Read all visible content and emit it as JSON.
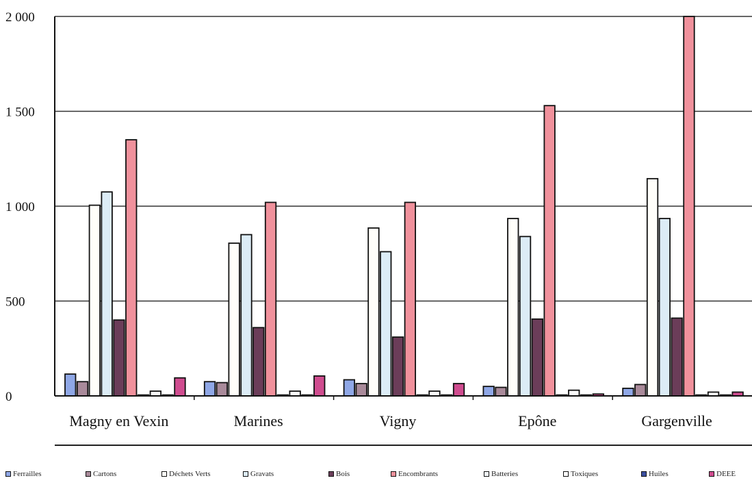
{
  "chart_data": {
    "type": "bar",
    "categories": [
      "Magny en Vexin",
      "Marines",
      "Vigny",
      "Epône",
      "Gargenville"
    ],
    "ylim": [
      0,
      2000
    ],
    "yticks": [
      "0",
      "500",
      "1 000",
      "1 500",
      "2 000"
    ],
    "ytick_values": [
      0,
      500,
      1000,
      1500,
      2000
    ],
    "grid": true,
    "legend_position": "bottom",
    "series": [
      {
        "name": "Ferrailles",
        "color": "#8fa7e6",
        "values": [
          115,
          75,
          85,
          50,
          40
        ]
      },
      {
        "name": "Cartons",
        "color": "#a98a9a",
        "values": [
          75,
          70,
          65,
          45,
          60
        ]
      },
      {
        "name": "Déchets Verts",
        "color": "#fffefa",
        "values": [
          1005,
          805,
          885,
          935,
          1145
        ]
      },
      {
        "name": "Gravats",
        "color": "#dcecf6",
        "values": [
          1075,
          850,
          760,
          840,
          935
        ]
      },
      {
        "name": "Bois",
        "color": "#6b3d59",
        "values": [
          400,
          360,
          310,
          405,
          410
        ]
      },
      {
        "name": "Encombrants",
        "color": "#f0919c",
        "values": [
          1350,
          1020,
          1020,
          1530,
          2000
        ]
      },
      {
        "name": "Batteries",
        "color": "#f3f8fb",
        "values": [
          5,
          5,
          5,
          5,
          5
        ]
      },
      {
        "name": "Toxiques",
        "color": "#fbfbfb",
        "values": [
          25,
          25,
          25,
          30,
          20
        ]
      },
      {
        "name": "Huiles",
        "color": "#3c4fa0",
        "values": [
          5,
          5,
          5,
          5,
          5
        ]
      },
      {
        "name": "DEEE",
        "color": "#cf4c8f",
        "values": [
          95,
          105,
          65,
          10,
          20
        ]
      }
    ]
  }
}
